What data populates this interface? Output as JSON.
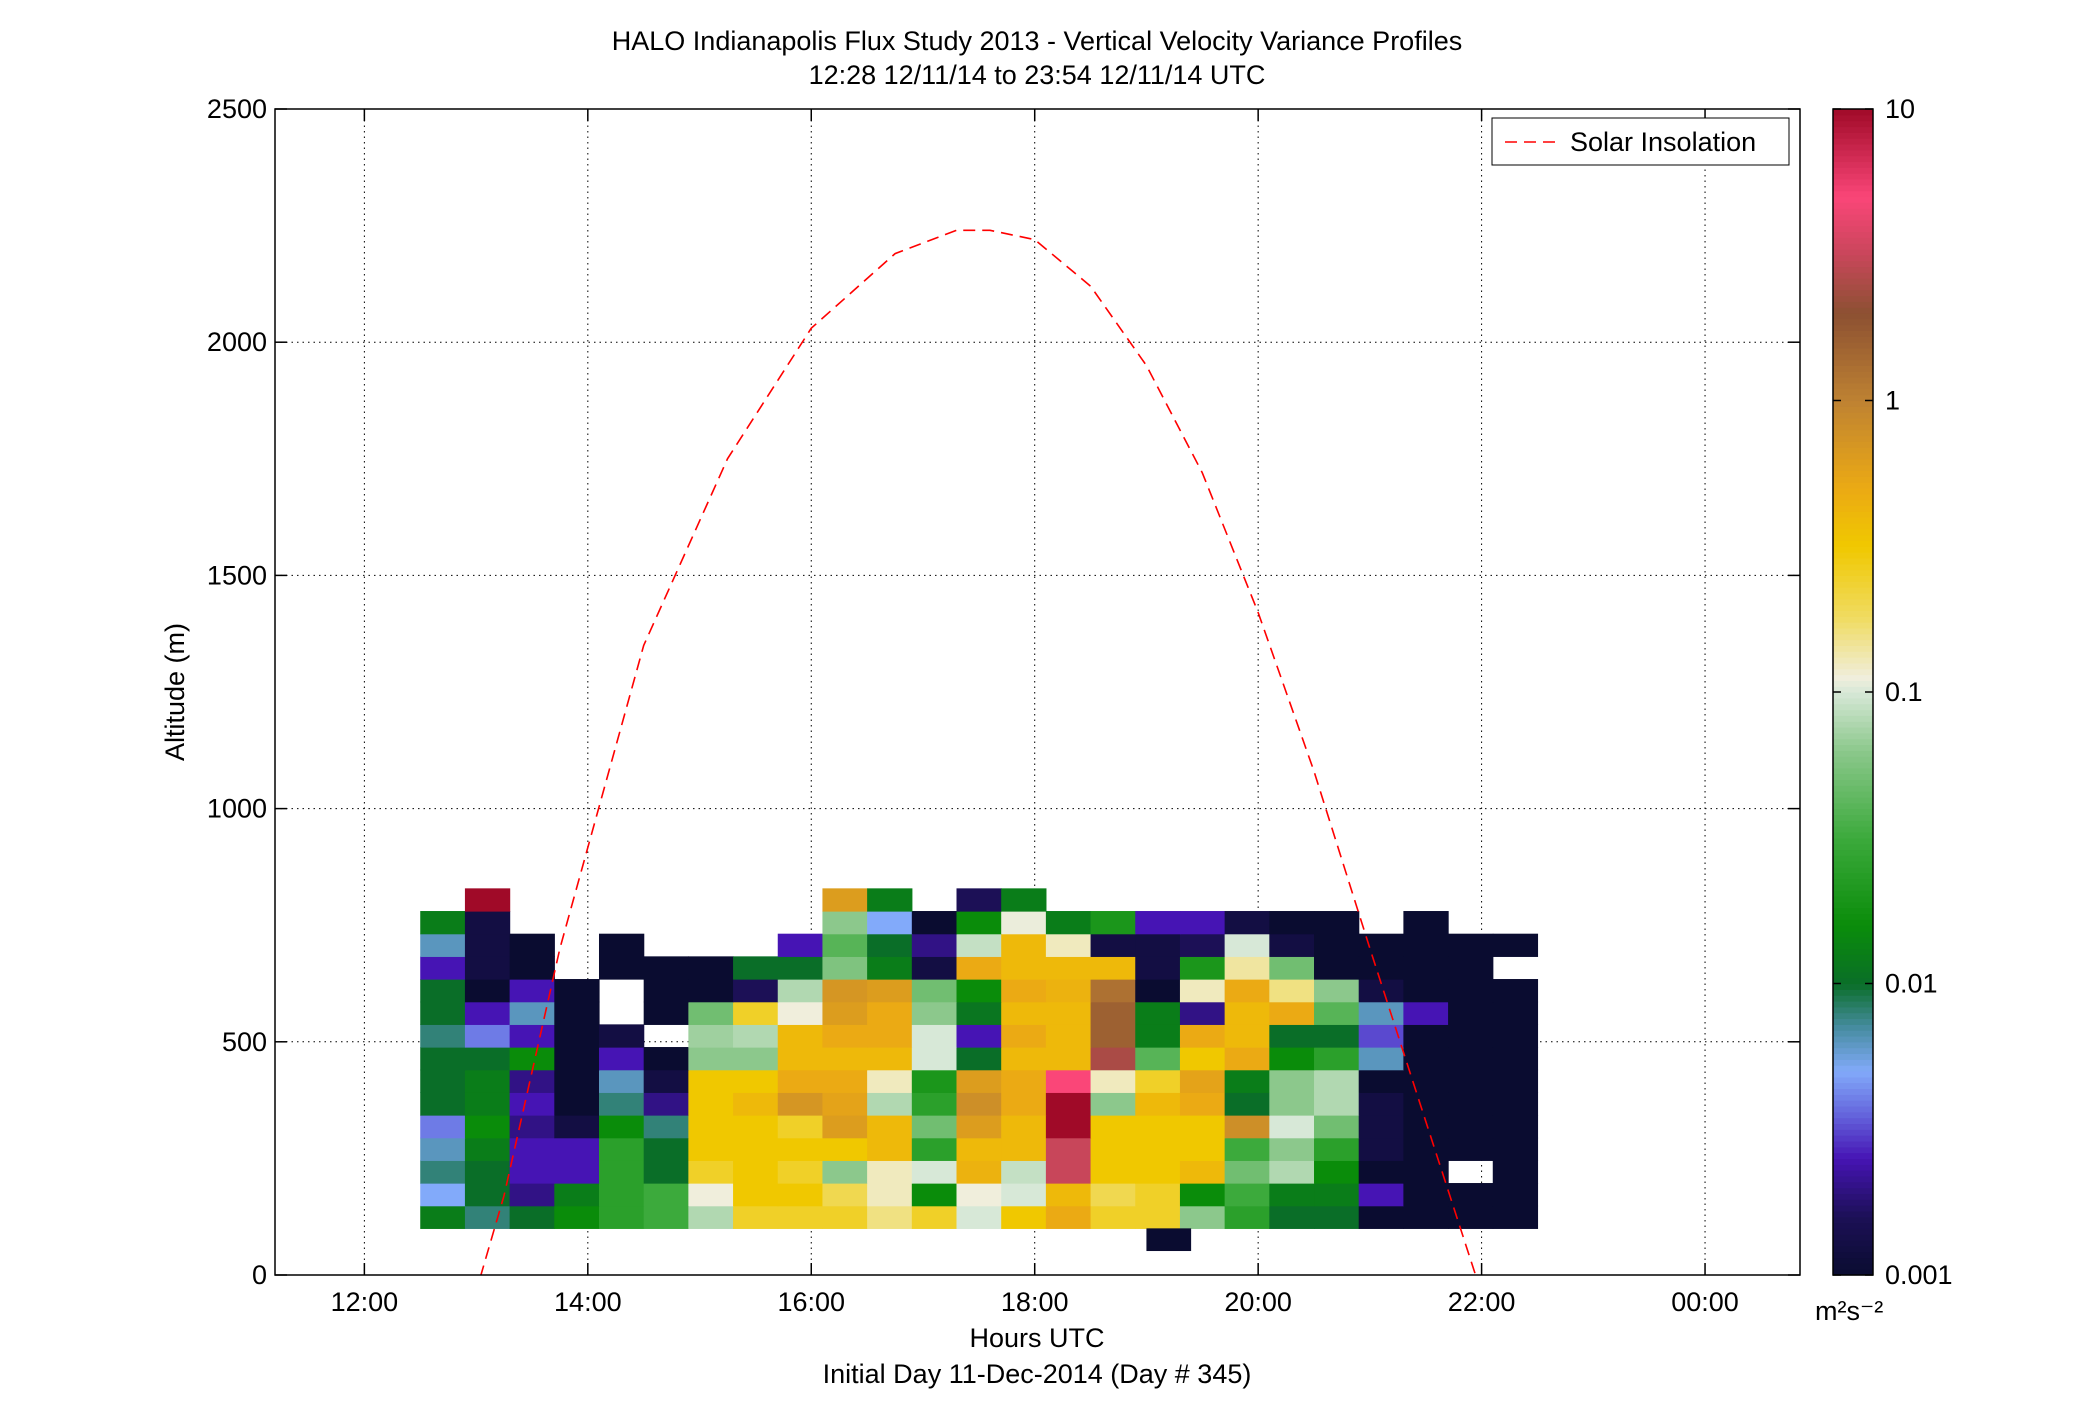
{
  "chart_data": {
    "type": "heatmap",
    "title": "HALO Indianapolis Flux Study 2013 - Vertical Velocity Variance Profiles",
    "subtitle": "12:28 12/11/14 to 23:54 12/11/14  UTC",
    "xlabel": "Hours UTC",
    "xlabel2": "Initial Day 11-Dec-2014 (Day # 345)",
    "ylabel": "Altitude (m)",
    "xlim": [
      11.2,
      24.85
    ],
    "ylim": [
      0,
      2500
    ],
    "x_ticks": [
      12,
      14,
      16,
      18,
      20,
      22,
      24
    ],
    "x_tick_labels": [
      "12:00",
      "14:00",
      "16:00",
      "18:00",
      "20:00",
      "22:00",
      "00:00"
    ],
    "y_ticks": [
      0,
      500,
      1000,
      1500,
      2000,
      2500
    ],
    "y_tick_labels": [
      "0",
      "500",
      "1000",
      "1500",
      "2000",
      "2500"
    ],
    "grid": true,
    "legend": {
      "placement": "top-right",
      "entries": [
        "Solar Insolation"
      ]
    },
    "colorbar": {
      "scale": "log",
      "range": [
        0.001,
        10
      ],
      "tick_values": [
        0.001,
        0.01,
        0.1,
        1,
        10
      ],
      "tick_labels": [
        "0.001",
        "0.01",
        "0.1",
        "1",
        "10"
      ],
      "units": "m²s⁻²"
    },
    "grid_x_start": 12.5,
    "grid_dx": 0.4,
    "grid_y_start": 100,
    "grid_dy": 48.6,
    "cell_values_log10": [
      [
        -1.9,
        -2.1,
        -2.0,
        -1.8,
        -1.6,
        -1.5,
        -1.1,
        -0.6,
        -0.6,
        -0.6,
        -0.8,
        -0.6,
        -1.0,
        -0.5,
        -0.3,
        -0.6,
        -0.6,
        -1.2,
        -1.6,
        -2.0,
        -2.0,
        -3.0,
        -3.0,
        -3.0,
        -3.0
      ],
      [
        -2.3,
        -2.0,
        -2.7,
        -1.9,
        -1.6,
        -1.5,
        -0.95,
        -0.5,
        -0.5,
        -0.7,
        -0.9,
        -1.8,
        -0.95,
        -1.0,
        -0.4,
        -0.7,
        -0.6,
        -1.8,
        -1.5,
        -1.9,
        -1.9,
        -2.6,
        -3.0,
        -3.0,
        -3.0
      ],
      [
        -2.1,
        -2.0,
        -2.6,
        -2.6,
        -1.6,
        -2.0,
        -0.6,
        -0.5,
        -0.6,
        -1.2,
        -0.9,
        -1.0,
        -0.35,
        -1.05,
        0.5,
        -0.5,
        -0.5,
        -0.4,
        -1.3,
        -1.1,
        -1.8,
        -3.0,
        -3.0,
        null,
        -3.0
      ],
      [
        -2.2,
        -1.9,
        -2.6,
        -2.6,
        -1.6,
        -2.0,
        -0.5,
        -0.5,
        -0.5,
        -0.5,
        -0.4,
        -1.6,
        -0.4,
        -0.4,
        0.5,
        -0.5,
        -0.5,
        -0.5,
        -1.5,
        -1.2,
        -1.6,
        -2.9,
        -3.0,
        -3.0,
        -3.0
      ],
      [
        -2.4,
        -1.8,
        -2.7,
        -2.9,
        -1.8,
        -2.1,
        -0.5,
        -0.5,
        -0.6,
        -0.2,
        -0.4,
        -1.3,
        -0.2,
        -0.4,
        1.0,
        -0.5,
        -0.5,
        -0.5,
        -0.1,
        -1.0,
        -1.3,
        -2.9,
        -3.0,
        -3.0,
        -3.0
      ],
      [
        -2.0,
        -1.9,
        -2.6,
        -3.0,
        -2.1,
        -2.7,
        -0.5,
        -0.4,
        -0.15,
        -0.25,
        -1.1,
        -1.6,
        -0.1,
        -0.3,
        1.0,
        -1.2,
        -0.4,
        -0.3,
        -2.0,
        -1.2,
        -1.1,
        -2.9,
        -3.0,
        -3.0,
        -3.0
      ],
      [
        -2.0,
        -1.9,
        -2.7,
        -3.0,
        -2.2,
        -2.9,
        -0.5,
        -0.5,
        -0.3,
        -0.3,
        -0.9,
        -1.7,
        -0.2,
        -0.3,
        0.7,
        -0.9,
        -0.6,
        -0.25,
        -1.9,
        -1.2,
        -1.1,
        -3.0,
        -3.0,
        -3.0,
        -3.0
      ],
      [
        -2.0,
        -2.0,
        -1.8,
        -3.0,
        -2.6,
        -3.0,
        -1.2,
        -1.2,
        -0.4,
        -0.4,
        -0.4,
        -1.0,
        -2.0,
        -0.4,
        -0.4,
        0.4,
        -1.4,
        -0.5,
        -0.3,
        -1.8,
        -1.6,
        -2.2,
        -3.0,
        -3.0,
        -3.0
      ],
      [
        -2.1,
        -2.4,
        -2.6,
        -3.0,
        -2.9,
        null,
        -1.15,
        -1.1,
        -0.4,
        -0.3,
        -0.3,
        -1.0,
        -2.6,
        -0.3,
        -0.4,
        0.2,
        -1.9,
        -0.3,
        -0.4,
        -2.0,
        -2.0,
        -2.5,
        -3.0,
        -3.0,
        -3.0
      ],
      [
        -2.0,
        -2.6,
        -2.2,
        -3.0,
        null,
        -3.0,
        -1.3,
        -0.6,
        -0.95,
        -0.2,
        -0.3,
        -1.2,
        -1.95,
        -0.4,
        -0.4,
        0.2,
        -1.9,
        -2.7,
        -0.4,
        -0.3,
        -1.4,
        -2.2,
        -2.6,
        -3.0,
        -3.0
      ],
      [
        -2.0,
        -3.0,
        -2.6,
        -3.0,
        null,
        -3.0,
        -3.0,
        -2.8,
        -1.1,
        -0.15,
        -0.2,
        -1.3,
        -1.8,
        -0.3,
        -0.35,
        0.1,
        -3.0,
        -0.9,
        -0.3,
        -0.8,
        -1.2,
        -2.9,
        -3.0,
        -3.0,
        -3.0
      ],
      [
        -2.6,
        -2.9,
        -3.0,
        null,
        -3.0,
        -3.0,
        -3.0,
        -2.0,
        -2.0,
        -1.25,
        -1.9,
        -2.9,
        -0.3,
        -0.4,
        -0.4,
        -0.4,
        -2.9,
        -1.7,
        -0.85,
        -1.3,
        -3.0,
        -3.0,
        -3.0,
        -3.0,
        null
      ],
      [
        -2.2,
        -2.9,
        -3.0,
        null,
        -3.0,
        null,
        null,
        null,
        -2.6,
        -1.4,
        -2.0,
        -2.7,
        -1.05,
        -0.4,
        -0.9,
        -2.9,
        -2.9,
        -2.8,
        -1.0,
        -2.9,
        -3.0,
        -3.0,
        -3.0,
        -3.0,
        -3.0
      ],
      [
        -1.9,
        -2.9,
        null,
        null,
        null,
        null,
        null,
        null,
        null,
        -1.2,
        -2.3,
        -3.0,
        -1.8,
        -0.96,
        -1.9,
        -1.7,
        -2.6,
        -2.6,
        -2.9,
        -3.0,
        -3.0,
        null,
        -3.0,
        null,
        null
      ],
      [
        null,
        1.6,
        null,
        null,
        null,
        null,
        null,
        null,
        null,
        -0.2,
        -1.9,
        null,
        -2.8,
        -1.9,
        null,
        null,
        null,
        null,
        null,
        null,
        null,
        null,
        null,
        null,
        null
      ]
    ],
    "extra_cells": [
      {
        "x": 19.0,
        "y_start": 51.4,
        "log10_value": -3.0
      }
    ],
    "series": [
      {
        "name": "Solar Insolation",
        "style": "dashed",
        "color": "#ff0000",
        "x": [
          12.8,
          13.25,
          13.75,
          14.5,
          15.25,
          16.0,
          16.75,
          17.3,
          17.6,
          18.0,
          18.5,
          19.0,
          19.5,
          20.0,
          20.5,
          21.0,
          21.5,
          22.0,
          22.2
        ],
        "y": [
          -200,
          170,
          700,
          1350,
          1750,
          2030,
          2190,
          2240,
          2240,
          2220,
          2120,
          1950,
          1720,
          1420,
          1080,
          700,
          330,
          -40,
          -200
        ]
      }
    ]
  }
}
